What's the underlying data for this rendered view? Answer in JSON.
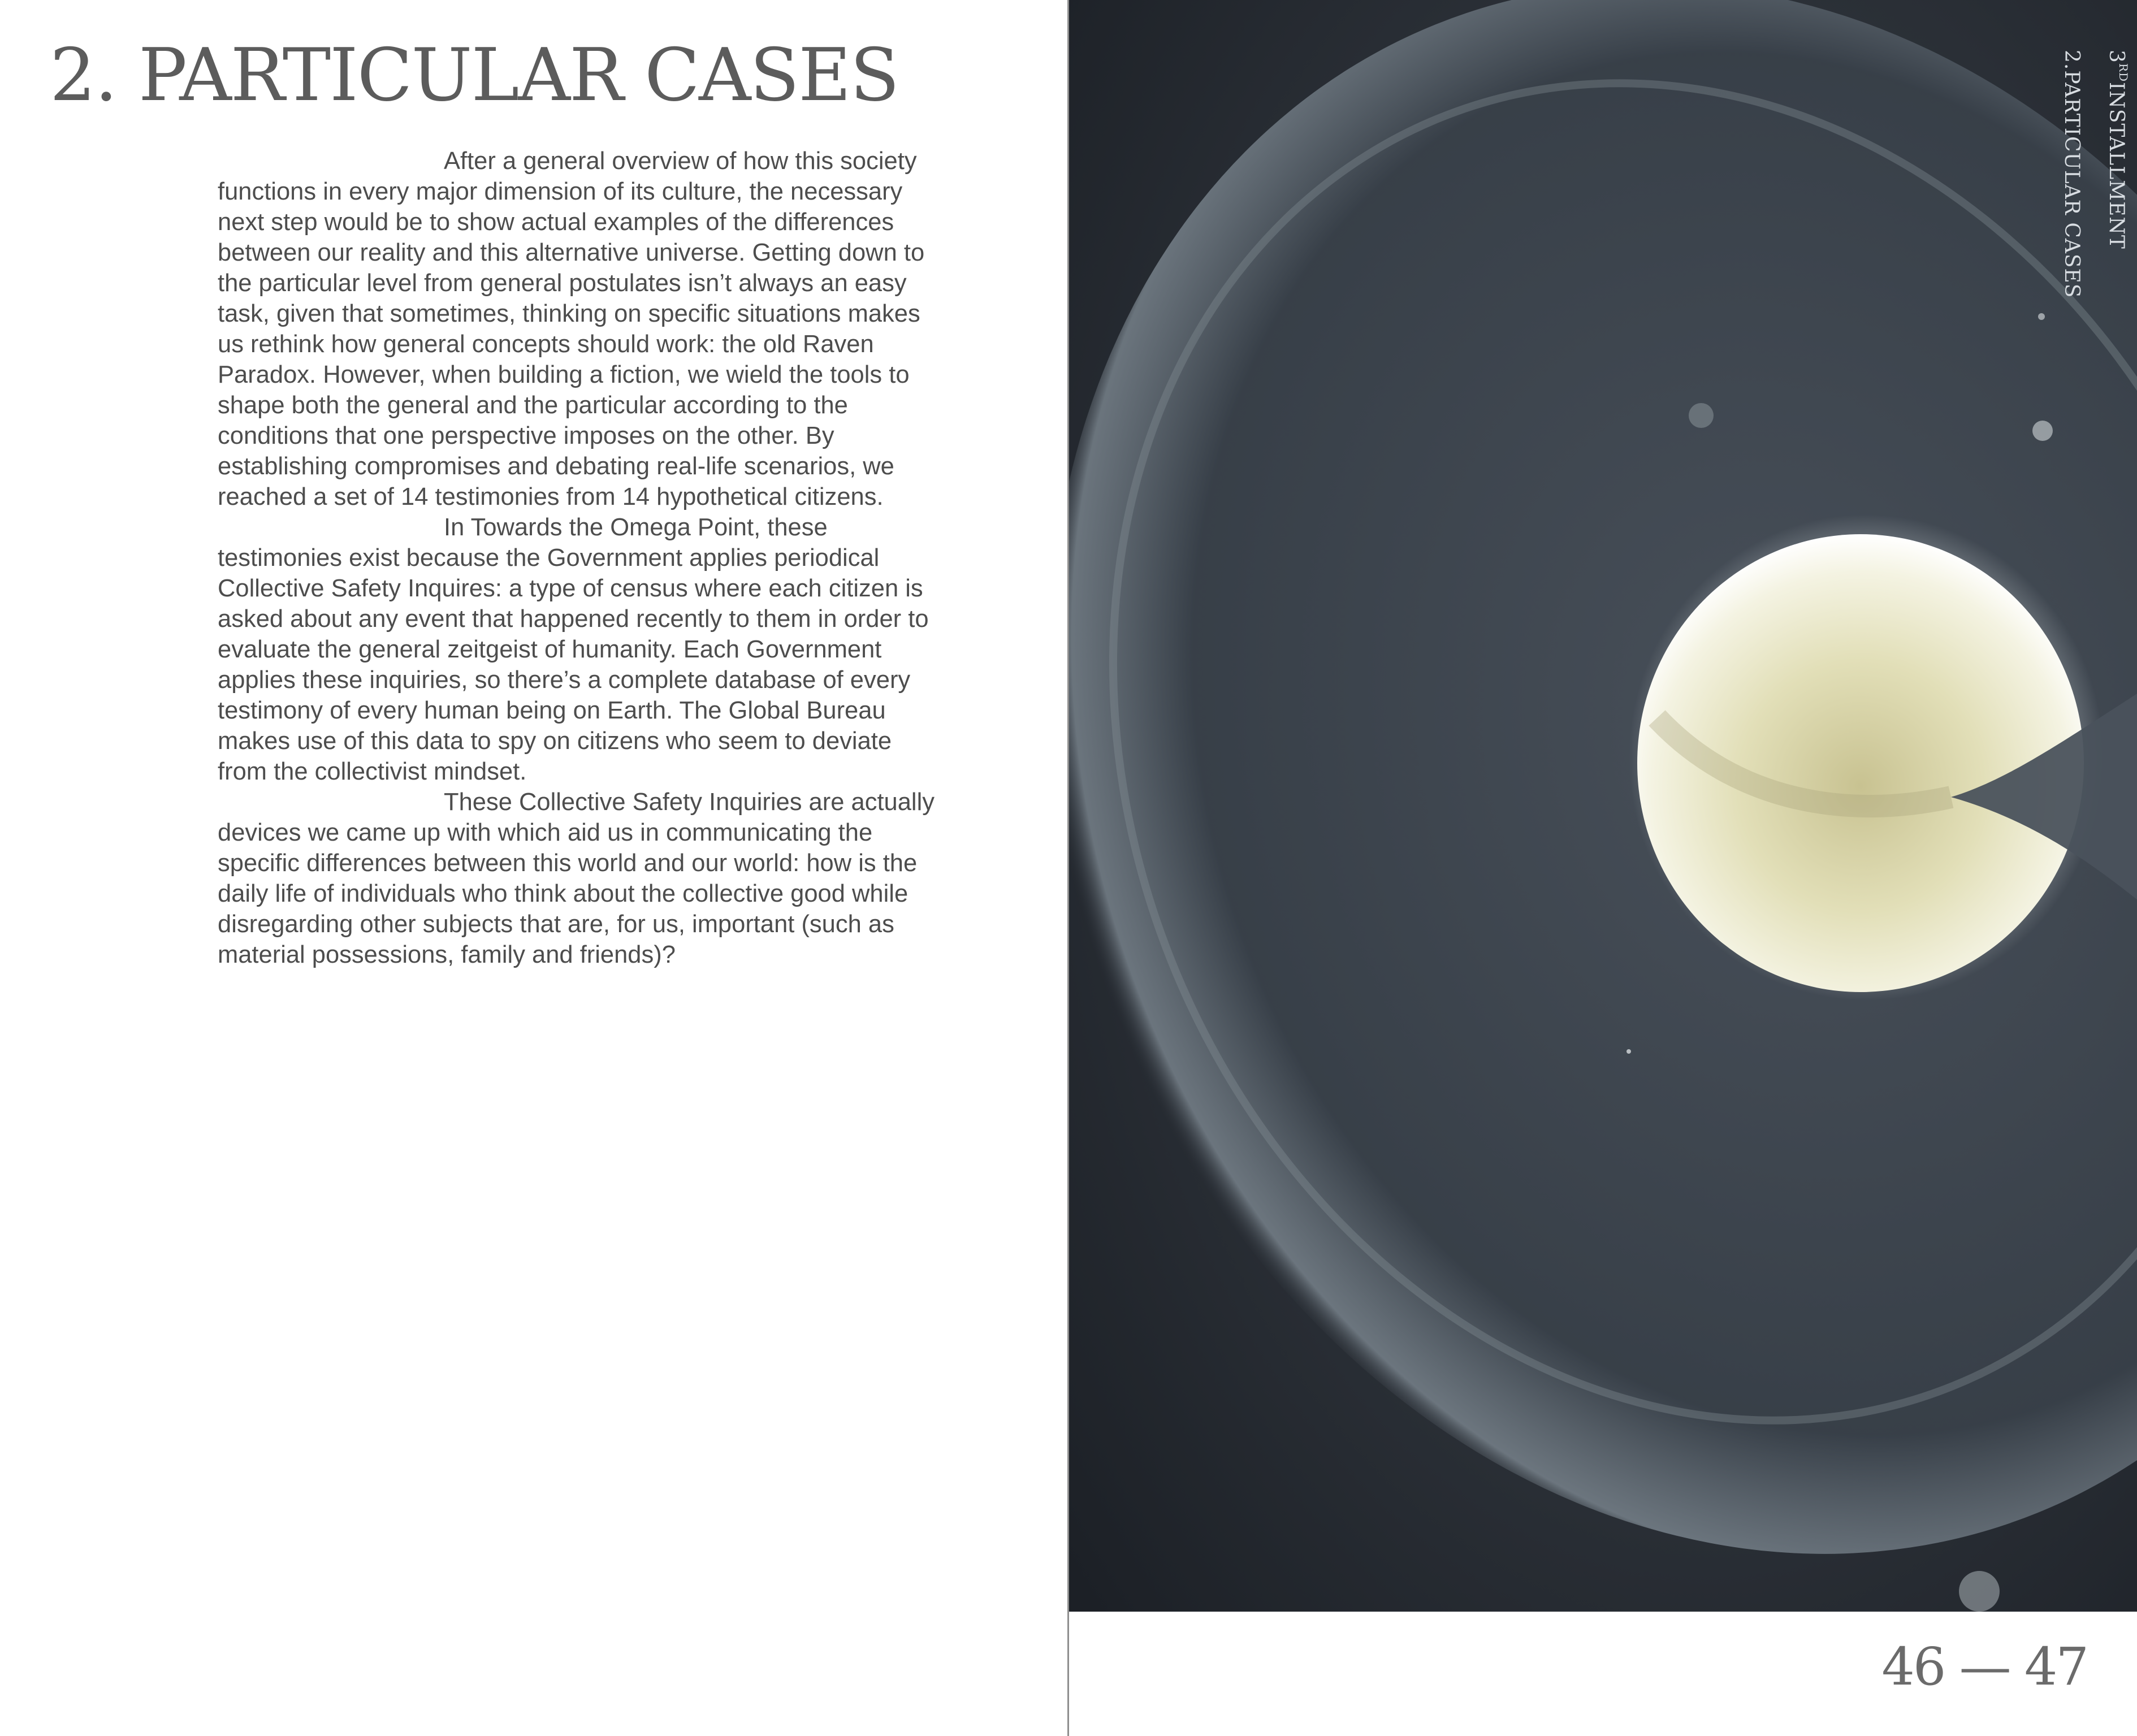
{
  "page": {
    "title": "2. PARTICULAR CASES",
    "paragraphs": [
      "After a general overview of how this society functions in every major dimension of its culture, the necessary next step would be to show actual examples of the differences between our reality and this alternative universe. Getting down to the particular level from general postulates isn’t always an easy task, given that sometimes, thinking on specific situations makes us rethink how general concepts should work: the old Raven Paradox. However, when building a fiction, we wield the tools to shape both the general and the particular according to the conditions that one perspective imposes on the other. By establishing compromises and debating real-life scenarios, we reached a set of 14 testimonies from 14 hypothetical citizens.",
      "In Towards the Omega Point, these testimonies exist because the Government applies periodical Collective Safety Inquires: a type of census where each citizen is asked about any event that happened recently to them in order to evaluate the general zeitgeist of humanity. Each Government applies these inquiries, so there’s a complete database of every testimony of every human being on Earth. The Global Bureau makes use of this data to spy on citizens who seem to deviate from the collectivist mindset.",
      "These Collective Safety Inquiries are actually devices we came up with which aid us in communicating the specific differences between this world and our world: how is the daily life of individuals who think about the collective good while disregarding other subjects that are, for us, important (such as material possessions, family and friends)?"
    ],
    "running_head": {
      "installment_number": "3",
      "installment_suffix": "RD",
      "installment_label": "INSTALLMENT",
      "chapter_number": "2.",
      "chapter_label": "PARTICULAR CASES"
    },
    "folio": "46 — 47"
  },
  "colors": {
    "photo_background": "#23272d",
    "egg_yolk": "#e9e7c4",
    "text": "#4d4d4d"
  }
}
